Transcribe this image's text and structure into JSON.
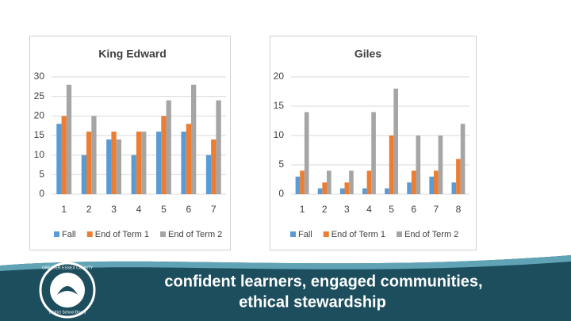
{
  "chart_data": [
    {
      "type": "bar",
      "title": "King Edward",
      "categories": [
        "1",
        "2",
        "3",
        "4",
        "5",
        "6",
        "7"
      ],
      "series": [
        {
          "name": "Fall",
          "color": "#5b9bd5",
          "values": [
            18,
            10,
            14,
            10,
            16,
            16,
            10
          ]
        },
        {
          "name": "End of Term 1",
          "color": "#ed7d31",
          "values": [
            20,
            16,
            16,
            16,
            20,
            18,
            14
          ]
        },
        {
          "name": "End of Term 2",
          "color": "#a5a5a5",
          "values": [
            28,
            20,
            14,
            16,
            24,
            28,
            24
          ]
        }
      ],
      "ylim": [
        0,
        30
      ],
      "yticks": [
        0,
        5,
        10,
        15,
        20,
        25,
        30
      ],
      "grid": true,
      "legend": "bottom"
    },
    {
      "type": "bar",
      "title": "Giles",
      "categories": [
        "1",
        "2",
        "3",
        "4",
        "5",
        "6",
        "7",
        "8"
      ],
      "series": [
        {
          "name": "Fall",
          "color": "#5b9bd5",
          "values": [
            3,
            1,
            1,
            1,
            1,
            2,
            3,
            2
          ]
        },
        {
          "name": "End of Term 1",
          "color": "#ed7d31",
          "values": [
            4,
            2,
            2,
            4,
            10,
            4,
            4,
            6
          ]
        },
        {
          "name": "End of Term 2",
          "color": "#a5a5a5",
          "values": [
            14,
            4,
            4,
            14,
            18,
            10,
            10,
            12
          ]
        }
      ],
      "ylim": [
        0,
        20
      ],
      "yticks": [
        0,
        5,
        10,
        15,
        20
      ],
      "grid": true,
      "legend": "bottom"
    }
  ],
  "footer": {
    "line1": "confident learners, engaged communities,",
    "line2": "ethical stewardship",
    "logo_top": "GREATER ESSEX COUNTY",
    "logo_bottom": "District School Board"
  }
}
